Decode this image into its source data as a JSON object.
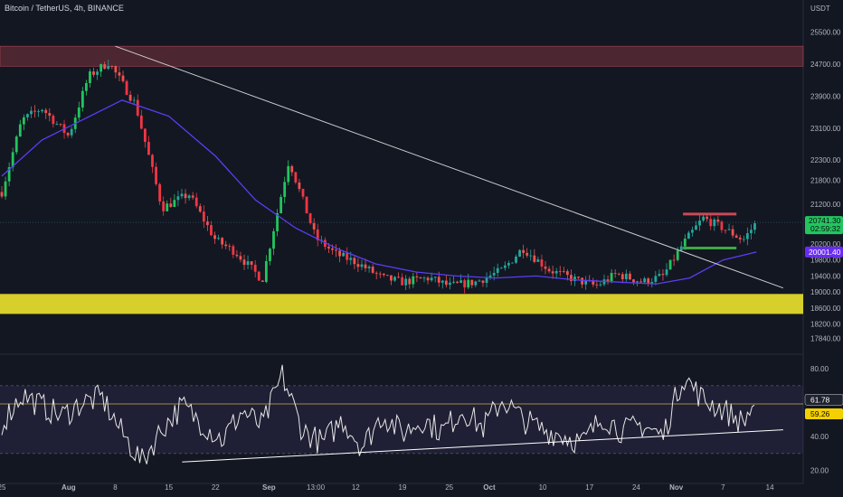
{
  "header": {
    "symbol": "Bitcoin / TetherUS, 4h, BINANCE",
    "currency": "USDT"
  },
  "colors": {
    "bg": "#131722",
    "up": "#26a69a",
    "down": "#ef5350",
    "bright_up": "#22c55e",
    "bright_down": "#f23645",
    "ma": "#5b3df5",
    "rsi": "#e6e6e6",
    "support_zone": "#d7cf2c",
    "resistance_zone": "#5b2a34",
    "trendline": "#cfcfcf",
    "rsi_level": "#c9b24e",
    "last_price_tag": "#22c55e",
    "ma_tag": "#6a2cf5",
    "rsi_tag": "#f5d000"
  },
  "chart_data": [
    {
      "type": "candlestick",
      "title": "Bitcoin / TetherUS, 4h, BINANCE",
      "ylabel": "USDT",
      "ylim": [
        17600,
        25900
      ],
      "y_ticks": [
        25500,
        24700,
        23900,
        23100,
        22300,
        21800,
        21200,
        20200,
        19800,
        19400,
        19000,
        18600,
        18200,
        17840
      ],
      "x_ticks": [
        "25",
        "Aug",
        "8",
        "15",
        "22",
        "Sep",
        "13:00",
        "12",
        "19",
        "25",
        "Oct",
        "10",
        "17",
        "24",
        "Nov",
        "7",
        "14"
      ],
      "last_price": "20741.30",
      "countdown": "02:59:32",
      "ma_value": "20001.40",
      "series": [
        {
          "name": "",
          "kind": "price",
          "x": [
            0,
            3,
            6,
            10,
            13,
            16,
            20,
            24,
            28,
            32,
            35,
            39,
            43,
            47,
            50,
            53,
            57,
            60,
            64,
            67,
            71,
            75,
            78,
            82,
            86,
            89,
            92,
            96,
            99,
            102,
            105,
            108,
            111,
            113
          ],
          "y": [
            21500,
            23300,
            23600,
            22900,
            24400,
            24750,
            23700,
            21100,
            21450,
            20300,
            20000,
            19300,
            22300,
            20350,
            19950,
            19750,
            19350,
            19250,
            19350,
            19150,
            19250,
            19550,
            20100,
            19550,
            19300,
            19150,
            19450,
            19250,
            19400,
            20200,
            20850,
            20600,
            20300,
            20741
          ]
        },
        {
          "name": "",
          "kind": "moving-average",
          "x": [
            0,
            6,
            12,
            18,
            25,
            32,
            38,
            44,
            50,
            56,
            62,
            68,
            74,
            80,
            86,
            92,
            98,
            103,
            108,
            113
          ],
          "y": [
            21900,
            22800,
            23300,
            23800,
            23400,
            22400,
            21300,
            20600,
            20100,
            19700,
            19500,
            19400,
            19350,
            19400,
            19300,
            19250,
            19200,
            19350,
            19800,
            20001
          ]
        },
        {
          "name": "",
          "kind": "trendline",
          "x": [
            17,
            117
          ],
          "y": [
            25150,
            19100
          ]
        }
      ],
      "zones": [
        {
          "name": "",
          "kind": "resistance",
          "y": [
            24650,
            25150
          ]
        },
        {
          "name": "",
          "kind": "support",
          "y": [
            18450,
            18950
          ]
        },
        {
          "name": "",
          "kind": "range-top",
          "y": [
            20950,
            20950
          ],
          "x": [
            102,
            110
          ]
        },
        {
          "name": "",
          "kind": "range-bottom",
          "y": [
            20100,
            20100
          ],
          "x": [
            102,
            110
          ]
        }
      ]
    },
    {
      "type": "line",
      "ylabel": "",
      "ylim": [
        15,
        87
      ],
      "y_ticks": [
        80.0,
        40.0,
        20.0
      ],
      "levels": [
        70,
        30
      ],
      "signal_value": "59.26",
      "last_value": "61.78",
      "series": [
        {
          "name": "",
          "kind": "rsi",
          "x": [
            0,
            3,
            6,
            9,
            12,
            15,
            18,
            21,
            24,
            27,
            30,
            33,
            36,
            39,
            42,
            45,
            48,
            51,
            54,
            57,
            60,
            63,
            66,
            69,
            72,
            75,
            78,
            81,
            84,
            87,
            90,
            93,
            96,
            99,
            102,
            105,
            108,
            111,
            113
          ],
          "y": [
            48,
            65,
            58,
            52,
            60,
            63,
            42,
            25,
            45,
            58,
            48,
            38,
            55,
            46,
            76,
            44,
            36,
            50,
            34,
            53,
            42,
            50,
            43,
            56,
            45,
            62,
            50,
            44,
            41,
            36,
            52,
            43,
            47,
            40,
            76,
            62,
            56,
            48,
            62
          ]
        },
        {
          "name": "",
          "kind": "rsi-trendline",
          "x": [
            27,
            117
          ],
          "y": [
            25,
            44
          ]
        }
      ]
    }
  ]
}
